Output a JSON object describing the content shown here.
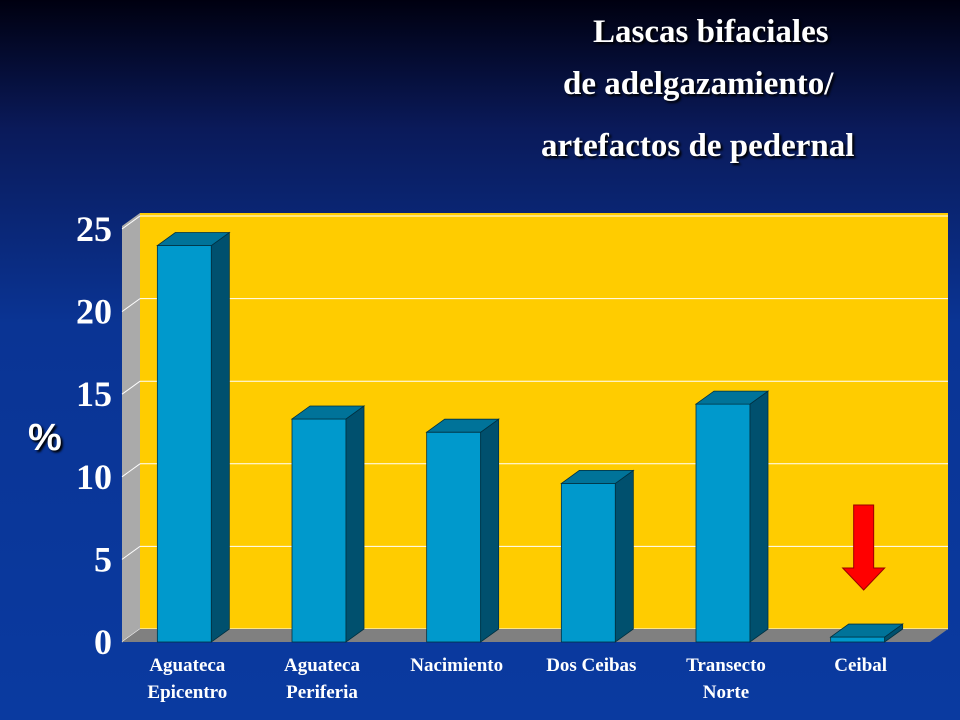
{
  "chart_data": {
    "type": "bar",
    "title_lines": [
      "Lascas bifaciales",
      "de adelgazamiento/",
      "artefactos de pedernal"
    ],
    "ylabel": "%",
    "xlabel": "",
    "categories": [
      [
        "Aguateca",
        "Epicentro"
      ],
      [
        "Aguateca",
        "Periferia"
      ],
      [
        "Nacimiento"
      ],
      [
        "Dos Ceibas"
      ],
      [
        "Transecto",
        "Norte"
      ],
      [
        "Ceibal"
      ]
    ],
    "values": [
      24.0,
      13.5,
      12.7,
      9.6,
      14.4,
      0.3
    ],
    "ylim": [
      0,
      25
    ],
    "yticks": [
      "0",
      "5",
      "10",
      "15",
      "20",
      "25"
    ],
    "grid": true,
    "annotation": "red-down-arrow over Ceibal",
    "colors": {
      "plot_bg": "#ffcc00",
      "bar_front": "#0099cc",
      "bar_side": "#00506e",
      "bar_top": "#007399",
      "floor": "#808080",
      "arrow": "#ff0000"
    }
  }
}
